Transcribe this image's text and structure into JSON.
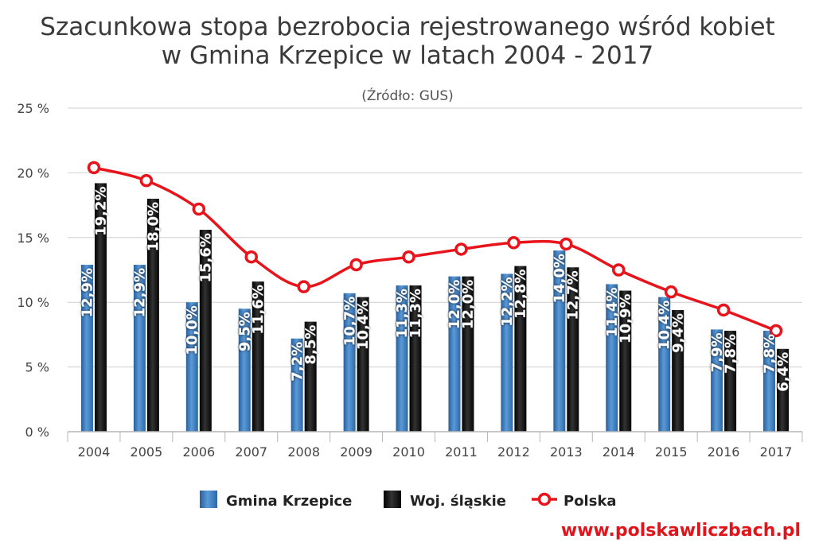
{
  "chart_data": {
    "type": "bar",
    "title_lines": [
      "Szacunkowa stopa bezrobocia rejestrowanego wśród kobiet",
      "w Gmina Krzepice w latach 2004 - 2017"
    ],
    "subtitle": "(Źródło: GUS)",
    "categories": [
      "2004",
      "2005",
      "2006",
      "2007",
      "2008",
      "2009",
      "2010",
      "2011",
      "2012",
      "2013",
      "2014",
      "2015",
      "2016",
      "2017"
    ],
    "ylim": [
      0,
      25
    ],
    "yticks": [
      0,
      5,
      10,
      15,
      20,
      25
    ],
    "ytick_labels": [
      "0 %",
      "5 %",
      "10 %",
      "15 %",
      "20 %",
      "25 %"
    ],
    "grid": true,
    "legend_position": "bottom",
    "series": [
      {
        "name": "Gmina Krzepice",
        "kind": "bar",
        "color": "#3d7fc2",
        "values": [
          12.9,
          12.9,
          10.0,
          9.5,
          7.2,
          10.7,
          11.3,
          12.0,
          12.2,
          14.0,
          11.4,
          10.4,
          7.9,
          7.8
        ],
        "labels": [
          "12,9%",
          "12,9%",
          "10,0%",
          "9,5%",
          "7,2%",
          "10,7%",
          "11,3%",
          "12,0%",
          "12,2%",
          "14,0%",
          "11,4%",
          "10,4%",
          "7,9%",
          "7,8%"
        ]
      },
      {
        "name": "Woj. śląskie",
        "kind": "bar",
        "color": "#111111",
        "values": [
          19.2,
          18.0,
          15.6,
          11.6,
          8.5,
          10.4,
          11.3,
          12.0,
          12.8,
          12.7,
          10.9,
          9.4,
          7.8,
          6.4
        ],
        "labels": [
          "19,2%",
          "18,0%",
          "15,6%",
          "11,6%",
          "8,5%",
          "10,4%",
          "11,3%",
          "12,0%",
          "12,8%",
          "12,7%",
          "10,9%",
          "9,4%",
          "7,8%",
          "6,4%"
        ]
      },
      {
        "name": "Polska",
        "kind": "line",
        "color": "#e8141b",
        "values": [
          20.4,
          19.4,
          17.2,
          13.5,
          11.2,
          12.9,
          13.5,
          14.1,
          14.6,
          14.5,
          12.5,
          10.8,
          9.4,
          7.8
        ]
      }
    ],
    "watermark": "www.polskawliczbach.pl"
  }
}
